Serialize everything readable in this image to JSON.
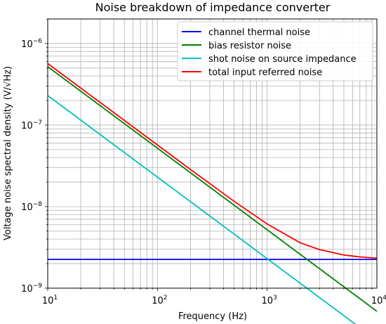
{
  "chart_data": {
    "type": "line",
    "title": "Noise breakdown of impedance converter",
    "xlabel": "Frequency (Hz)",
    "ylabel": "Voltage noise spectral density (V/√Hz)",
    "xscale": "log",
    "yscale": "log",
    "xlim": [
      10,
      10000
    ],
    "ylim": [
      1e-09,
      2e-06
    ],
    "grid": "on (major and minor)",
    "legend_position": "upper-right",
    "x_ticks": [
      {
        "value": 10,
        "base": "10",
        "exp": "1"
      },
      {
        "value": 100,
        "base": "10",
        "exp": "2"
      },
      {
        "value": 1000,
        "base": "10",
        "exp": "3"
      },
      {
        "value": 10000,
        "base": "10",
        "exp": "4"
      }
    ],
    "y_ticks": [
      {
        "value": 1e-09,
        "base": "10",
        "exp": "−9"
      },
      {
        "value": 1e-08,
        "base": "10",
        "exp": "−8"
      },
      {
        "value": 1e-07,
        "base": "10",
        "exp": "−7"
      },
      {
        "value": 1e-06,
        "base": "10",
        "exp": "−6"
      }
    ],
    "series": [
      {
        "name": "channel thermal noise",
        "color": "#0000ff",
        "x": [
          10,
          10000
        ],
        "y": [
          2.25e-09,
          2.25e-09
        ]
      },
      {
        "name": "bias resistor noise",
        "color": "#008000",
        "x": [
          10,
          10000
        ],
        "y": [
          5.2e-07,
          5.2e-10
        ]
      },
      {
        "name": "shot noise on source impedance",
        "color": "#00bfbf",
        "x": [
          10,
          10000
        ],
        "y": [
          2.3e-07,
          2.3e-10
        ]
      },
      {
        "name": "total input referred noise",
        "color": "#ff0000",
        "x": [
          10,
          20,
          50,
          100,
          200,
          500,
          1000,
          2000,
          3000,
          5000,
          7000,
          10000
        ],
        "y": [
          5.69e-07,
          2.845e-07,
          1.139e-07,
          5.7e-08,
          2.854e-08,
          1.161e-08,
          6.13e-09,
          3.6e-09,
          2.97e-09,
          2.55e-09,
          2.42e-09,
          2.33e-09
        ]
      }
    ]
  }
}
